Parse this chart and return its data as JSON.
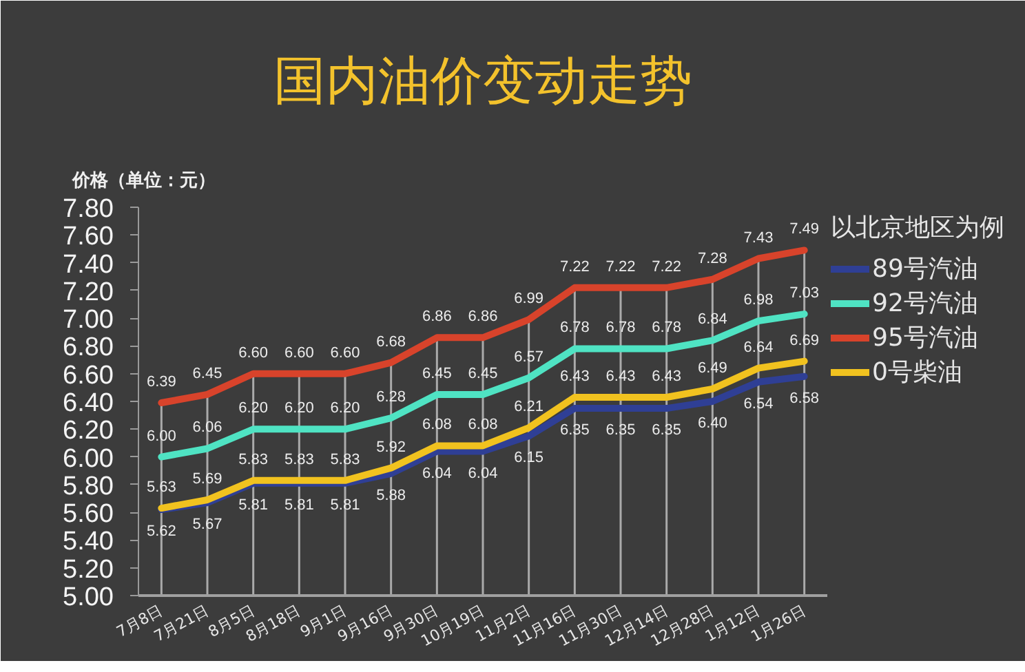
{
  "chart_data": {
    "type": "line",
    "title": "国内油价变动走势",
    "ylabel": "价格（单位：元）",
    "legend_title": "以北京地区为例",
    "categories": [
      "7月8日",
      "7月21日",
      "8月5日",
      "8月18日",
      "9月1日",
      "9月16日",
      "9月30日",
      "10月19日",
      "11月2日",
      "11月16日",
      "11月30日",
      "12月14日",
      "12月28日",
      "1月12日",
      "1月26日"
    ],
    "series": [
      {
        "name": "89号汽油",
        "color": "#2f3f95",
        "values": [
          5.62,
          5.67,
          5.81,
          5.81,
          5.81,
          5.88,
          6.04,
          6.04,
          6.15,
          6.35,
          6.35,
          6.35,
          6.4,
          6.54,
          6.58
        ],
        "value_labels": [
          "5.62",
          "5.67",
          "5.81",
          "5.81",
          "5.81",
          "5.88",
          "6.04",
          "6.04",
          "6.15",
          "6.35",
          "6.35",
          "6.35",
          "6.40",
          "6.54",
          "6.58"
        ]
      },
      {
        "name": "92号汽油",
        "color": "#4fe3c3",
        "values": [
          6.0,
          6.06,
          6.2,
          6.2,
          6.2,
          6.28,
          6.45,
          6.45,
          6.57,
          6.78,
          6.78,
          6.78,
          6.84,
          6.98,
          7.03
        ],
        "value_labels": [
          "6.00",
          "6.06",
          "6.20",
          "6.20",
          "6.20",
          "6.28",
          "6.45",
          "6.45",
          "6.57",
          "6.78",
          "6.78",
          "6.78",
          "6.84",
          "6.98",
          "7.03"
        ]
      },
      {
        "name": "95号汽油",
        "color": "#d8432b",
        "values": [
          6.39,
          6.45,
          6.6,
          6.6,
          6.6,
          6.68,
          6.86,
          6.86,
          6.99,
          7.22,
          7.22,
          7.22,
          7.28,
          7.43,
          7.49
        ],
        "value_labels": [
          "6.39",
          "6.45",
          "6.60",
          "6.60",
          "6.60",
          "6.68",
          "6.86",
          "6.86",
          "6.99",
          "7.22",
          "7.22",
          "7.22",
          "7.28",
          "7.43",
          "7.49"
        ]
      },
      {
        "name": "0号柴油",
        "color": "#f1c21f",
        "values": [
          5.63,
          5.69,
          5.83,
          5.83,
          5.83,
          5.92,
          6.08,
          6.08,
          6.21,
          6.43,
          6.43,
          6.43,
          6.49,
          6.64,
          6.69
        ],
        "value_labels": [
          "5.63",
          "5.69",
          "5.83",
          "5.83",
          "5.83",
          "5.92",
          "6.08",
          "6.08",
          "6.21",
          "6.43",
          "6.43",
          "6.43",
          "6.49",
          "6.64",
          "6.69"
        ]
      }
    ],
    "ylim": [
      5.0,
      7.8
    ],
    "yticks": [
      {
        "value": 5.0,
        "label": "5.00"
      },
      {
        "value": 5.2,
        "label": "5.20"
      },
      {
        "value": 5.4,
        "label": "5.40"
      },
      {
        "value": 5.6,
        "label": "5.60"
      },
      {
        "value": 5.8,
        "label": "5.80"
      },
      {
        "value": 6.0,
        "label": "6.00"
      },
      {
        "value": 6.2,
        "label": "6.20"
      },
      {
        "value": 6.4,
        "label": "6.40"
      },
      {
        "value": 6.6,
        "label": "6.60"
      },
      {
        "value": 6.8,
        "label": "6.80"
      },
      {
        "value": 7.0,
        "label": "7.00"
      },
      {
        "value": 7.2,
        "label": "7.20"
      },
      {
        "value": 7.4,
        "label": "7.40"
      },
      {
        "value": 7.6,
        "label": "7.60"
      },
      {
        "value": 7.8,
        "label": "7.80"
      }
    ],
    "grid": "x",
    "legend": "right",
    "line_style": "solid"
  }
}
